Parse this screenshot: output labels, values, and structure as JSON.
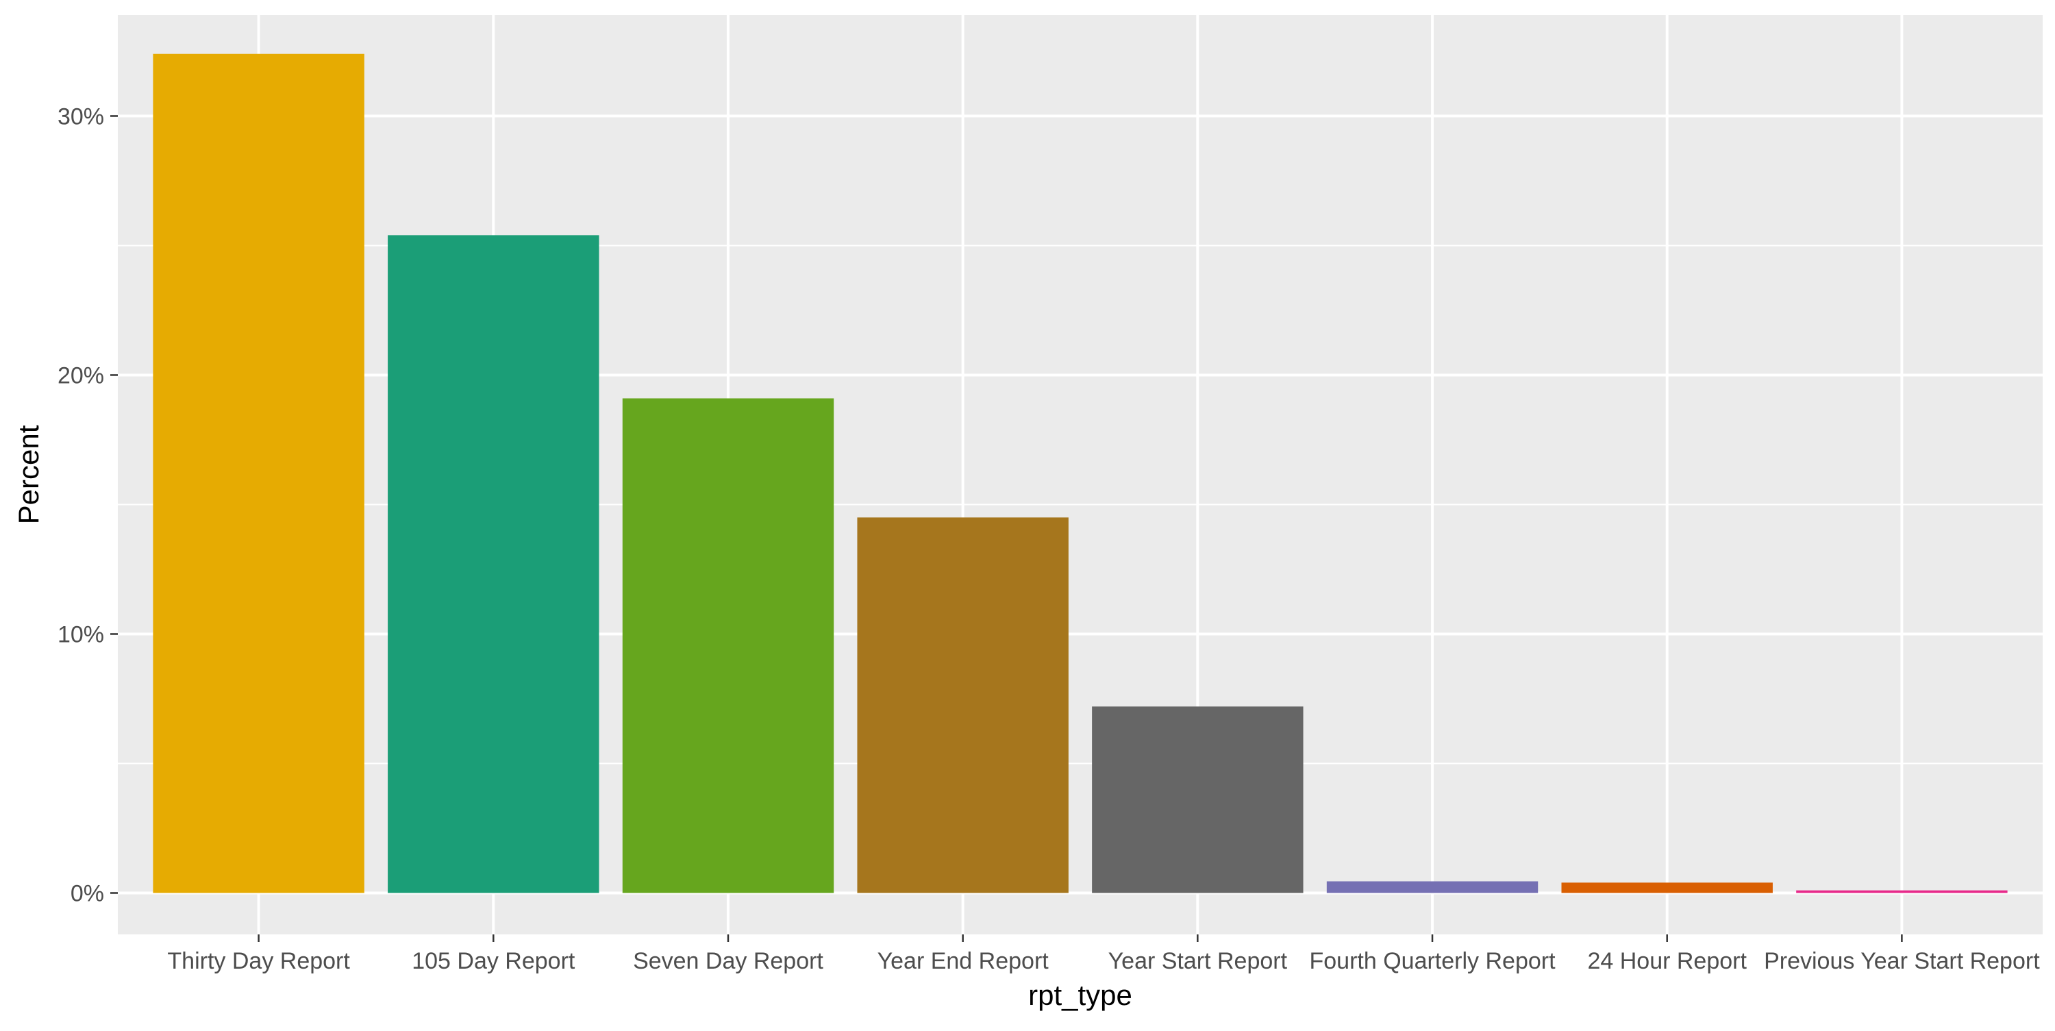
{
  "chart_data": {
    "type": "bar",
    "title": "",
    "xlabel": "rpt_type",
    "ylabel": "Percent",
    "categories": [
      "Thirty Day Report",
      "105 Day Report",
      "Seven Day Report",
      "Year End Report",
      "Year Start Report",
      "Fourth Quarterly Report",
      "24 Hour Report",
      "Previous Year Start Report"
    ],
    "values": [
      32.4,
      25.4,
      19.1,
      14.5,
      7.2,
      0.45,
      0.4,
      0.1
    ],
    "colors": [
      "#E6AB02",
      "#1B9E77",
      "#66A61E",
      "#A6761D",
      "#666666",
      "#7570B3",
      "#D95F02",
      "#E7298A"
    ],
    "ylim": [
      -1.6,
      33.9
    ],
    "yticks": [
      0,
      10,
      20,
      30
    ],
    "ytick_labels": [
      "0%",
      "10%",
      "20%",
      "30%"
    ],
    "ytick_minor": [
      5,
      15,
      25
    ],
    "grid": true,
    "legend": "none",
    "panel_background": "#EBEBEB",
    "grid_color": "#FFFFFF"
  }
}
